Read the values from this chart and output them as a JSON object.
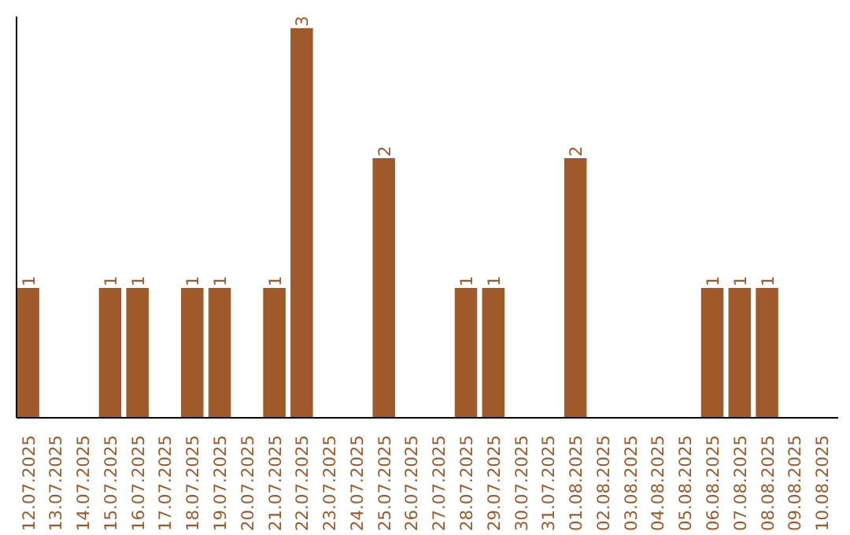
{
  "chart_data": {
    "type": "bar",
    "categories": [
      "12.07.2025",
      "13.07.2025",
      "14.07.2025",
      "15.07.2025",
      "16.07.2025",
      "17.07.2025",
      "18.07.2025",
      "19.07.2025",
      "20.07.2025",
      "21.07.2025",
      "22.07.2025",
      "23.07.2025",
      "24.07.2025",
      "25.07.2025",
      "26.07.2025",
      "27.07.2025",
      "28.07.2025",
      "29.07.2025",
      "30.07.2025",
      "31.07.2025",
      "01.08.2025",
      "02.08.2025",
      "03.08.2025",
      "04.08.2025",
      "05.08.2025",
      "06.08.2025",
      "07.08.2025",
      "08.08.2025",
      "09.08.2025",
      "10.08.2025"
    ],
    "values": [
      1,
      0,
      0,
      1,
      1,
      0,
      1,
      1,
      0,
      1,
      3,
      0,
      0,
      2,
      0,
      0,
      1,
      1,
      0,
      0,
      2,
      0,
      0,
      0,
      0,
      1,
      1,
      1,
      0,
      0
    ],
    "value_labels": [
      "1",
      null,
      null,
      "1",
      "1",
      null,
      "1",
      "1",
      null,
      "1",
      "3",
      null,
      null,
      "2",
      null,
      null,
      "1",
      "1",
      null,
      null,
      "2",
      null,
      null,
      null,
      null,
      "1",
      "1",
      "1",
      null,
      null
    ],
    "color": "#a0592a",
    "grid": false,
    "tick_labels": "x"
  }
}
